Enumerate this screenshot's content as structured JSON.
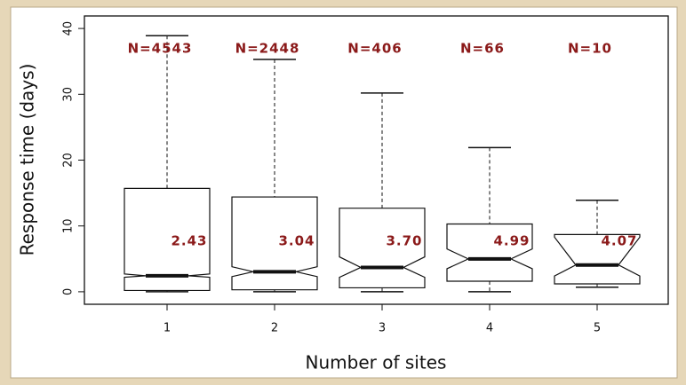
{
  "chart_data": {
    "type": "box",
    "x_label": "Number of sites",
    "y_label": "Response time (days)",
    "categories": [
      "1",
      "2",
      "3",
      "4",
      "5"
    ],
    "boxes": [
      {
        "whisker_low": 0,
        "q1": 0.2,
        "notch_low": 2.2,
        "median": 2.43,
        "median_label": "2.43",
        "notch_high": 2.7,
        "q3": 15.7,
        "whisker_high": 38.9,
        "n_label": "N=4543"
      },
      {
        "whisker_low": 0,
        "q1": 0.3,
        "notch_low": 2.3,
        "median": 3.04,
        "median_label": "3.04",
        "notch_high": 3.8,
        "q3": 14.4,
        "whisker_high": 35.3,
        "n_label": "N=2448"
      },
      {
        "whisker_low": 0,
        "q1": 0.6,
        "notch_low": 2.2,
        "median": 3.7,
        "median_label": "3.70",
        "notch_high": 5.3,
        "q3": 12.7,
        "whisker_high": 30.2,
        "n_label": "N=406"
      },
      {
        "whisker_low": 0,
        "q1": 1.6,
        "notch_low": 3.5,
        "median": 4.99,
        "median_label": "4.99",
        "notch_high": 6.5,
        "q3": 10.3,
        "whisker_high": 21.9,
        "n_label": "N=66"
      },
      {
        "whisker_low": 0.7,
        "q1": 1.2,
        "notch_low": 2.4,
        "median": 4.07,
        "median_label": "4.07",
        "notch_high": 8.3,
        "q3": 8.7,
        "whisker_high": 13.9,
        "n_label": "N=10"
      }
    ],
    "ylim": [
      -1.9,
      41.9
    ],
    "yticks": [
      0,
      10,
      20,
      30,
      40
    ],
    "color": "#ffffff",
    "label_color": "#8b1a1a"
  }
}
